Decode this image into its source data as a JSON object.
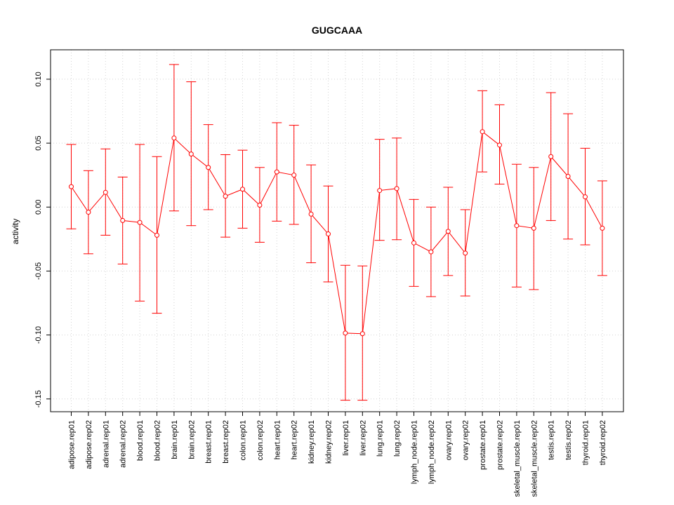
{
  "chart_data": {
    "type": "line",
    "title": "GUGCAAA",
    "xlabel": "",
    "ylabel": "activity",
    "ylim": [
      -0.16,
      0.123
    ],
    "yticks": [
      "0.10",
      "0.05",
      "0.00",
      "-0.05",
      "-0.10",
      "-0.15"
    ],
    "ytick_values": [
      0.1,
      0.05,
      0.0,
      -0.05,
      -0.1,
      -0.15
    ],
    "grid": true,
    "error_bars": true,
    "series_color": "#ff0000",
    "categories": [
      "adipose.rep01",
      "adipose.rep02",
      "adrenal.rep01",
      "adrenal.rep02",
      "blood.rep01",
      "blood.rep02",
      "brain.rep01",
      "brain.rep02",
      "breast.rep01",
      "breast.rep02",
      "colon.rep01",
      "colon.rep02",
      "heart.rep01",
      "heart.rep02",
      "kidney.rep01",
      "kidney.rep02",
      "liver.rep01",
      "liver.rep02",
      "lung.rep01",
      "lung.rep02",
      "lymph_node.rep01",
      "lymph_node.rep02",
      "ovary.rep01",
      "ovary.rep02",
      "prostate.rep01",
      "prostate.rep02",
      "skeletal_muscle.rep01",
      "skeletal_muscle.rep02",
      "testis.rep01",
      "testis.rep02",
      "thyroid.rep01",
      "thyroid.rep02"
    ],
    "values": [
      0.016,
      -0.004,
      0.0115,
      -0.0105,
      -0.012,
      -0.022,
      0.054,
      0.0415,
      0.031,
      0.0085,
      0.014,
      0.0015,
      0.0275,
      0.025,
      -0.0055,
      -0.021,
      -0.0985,
      -0.099,
      0.013,
      0.0145,
      -0.028,
      -0.035,
      -0.019,
      -0.036,
      0.059,
      0.0485,
      -0.0145,
      -0.0165,
      0.0395,
      0.024,
      0.008,
      -0.0165
    ],
    "upper": [
      0.049,
      0.0285,
      0.0455,
      0.0235,
      0.049,
      0.0395,
      0.1115,
      0.098,
      0.0645,
      0.041,
      0.0445,
      0.031,
      0.066,
      0.064,
      0.033,
      0.0165,
      -0.0455,
      -0.046,
      0.053,
      0.054,
      0.006,
      0.0,
      0.0155,
      -0.002,
      0.091,
      0.08,
      0.0335,
      0.031,
      0.0895,
      0.073,
      0.046,
      0.0205
    ],
    "lower": [
      -0.017,
      -0.0365,
      -0.022,
      -0.0445,
      -0.0735,
      -0.083,
      -0.003,
      -0.0145,
      -0.002,
      -0.0235,
      -0.0165,
      -0.0275,
      -0.011,
      -0.0135,
      -0.0435,
      -0.0585,
      -0.151,
      -0.151,
      -0.026,
      -0.0255,
      -0.062,
      -0.07,
      -0.0535,
      -0.0695,
      0.0275,
      0.018,
      -0.0625,
      -0.0645,
      -0.0105,
      -0.025,
      -0.0295,
      -0.0535
    ]
  }
}
